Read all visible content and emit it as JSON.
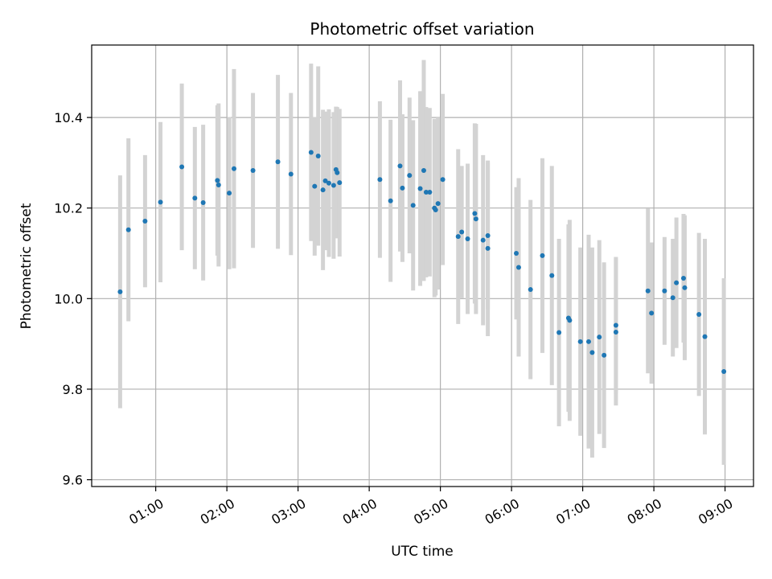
{
  "chart_data": {
    "type": "scatter",
    "title": "Photometric offset variation",
    "xlabel": "UTC time",
    "ylabel": "Photometric offset",
    "xlim": [
      "00:06",
      "09:24"
    ],
    "ylim": [
      9.585,
      10.56
    ],
    "grid": true,
    "x_ticks": [
      "01:00",
      "02:00",
      "03:00",
      "04:00",
      "05:00",
      "06:00",
      "07:00",
      "08:00",
      "09:00"
    ],
    "y_ticks": [
      9.6,
      9.8,
      10.0,
      10.2,
      10.4
    ],
    "y_tick_labels": [
      "9.6",
      "9.8",
      "10.0",
      "10.2",
      "10.4"
    ],
    "marker_color": "#1f77b4",
    "errorbar_color": "#d3d3d3",
    "series": [
      {
        "x": [
          "00:30",
          "00:37",
          "00:51",
          "01:04",
          "01:22",
          "01:33",
          "01:40",
          "01:52",
          "01:53",
          "02:02",
          "02:06",
          "02:22",
          "02:43",
          "02:54",
          "03:11",
          "03:14",
          "03:17",
          "03:21",
          "03:23",
          "03:26",
          "03:30",
          "03:32",
          "03:33",
          "03:35",
          "04:09",
          "04:18",
          "04:26",
          "04:28",
          "04:34",
          "04:37",
          "04:43",
          "04:46",
          "04:48",
          "04:51",
          "04:55",
          "04:56",
          "04:58",
          "05:02",
          "05:15",
          "05:18",
          "05:23",
          "05:29",
          "05:30",
          "05:36",
          "05:40",
          "05:40",
          "06:04",
          "06:06",
          "06:16",
          "06:26",
          "06:34",
          "06:40",
          "06:48",
          "06:49",
          "06:58",
          "07:05",
          "07:08",
          "07:14",
          "07:18",
          "07:28",
          "07:28",
          "07:55",
          "07:58",
          "08:09",
          "08:16",
          "08:19",
          "08:25",
          "08:26",
          "08:38",
          "08:43",
          "08:59"
        ],
        "y": [
          10.015,
          10.152,
          10.171,
          10.213,
          10.291,
          10.222,
          10.212,
          10.261,
          10.251,
          10.233,
          10.287,
          10.283,
          10.302,
          10.275,
          10.323,
          10.248,
          10.315,
          10.24,
          10.26,
          10.255,
          10.25,
          10.285,
          10.278,
          10.256,
          10.263,
          10.216,
          10.293,
          10.244,
          10.272,
          10.206,
          10.243,
          10.283,
          10.235,
          10.235,
          10.2,
          10.196,
          10.21,
          10.263,
          10.137,
          10.147,
          10.132,
          10.188,
          10.176,
          10.129,
          10.139,
          10.111,
          10.1,
          10.069,
          10.02,
          10.095,
          10.051,
          9.925,
          9.957,
          9.952,
          9.905,
          9.905,
          9.881,
          9.915,
          9.875,
          9.926,
          9.941,
          10.017,
          9.968,
          10.017,
          10.002,
          10.035,
          10.045,
          10.024,
          9.965,
          9.916,
          9.839
        ],
        "yerr": [
          0.257,
          0.202,
          0.146,
          0.177,
          0.184,
          0.157,
          0.172,
          0.166,
          0.18,
          0.168,
          0.22,
          0.171,
          0.192,
          0.179,
          0.196,
          0.153,
          0.198,
          0.177,
          0.153,
          0.163,
          0.162,
          0.139,
          0.145,
          0.163,
          0.173,
          0.179,
          0.189,
          0.163,
          0.172,
          0.188,
          0.215,
          0.244,
          0.188,
          0.186,
          0.197,
          0.189,
          0.19,
          0.189,
          0.193,
          0.146,
          0.166,
          0.199,
          0.21,
          0.188,
          0.162,
          0.194,
          0.146,
          0.197,
          0.198,
          0.215,
          0.242,
          0.207,
          0.207,
          0.222,
          0.208,
          0.236,
          0.232,
          0.214,
          0.205,
          0.162,
          0.151,
          0.182,
          0.156,
          0.119,
          0.13,
          0.144,
          0.142,
          0.16,
          0.18,
          0.216,
          0.206
        ]
      }
    ]
  }
}
